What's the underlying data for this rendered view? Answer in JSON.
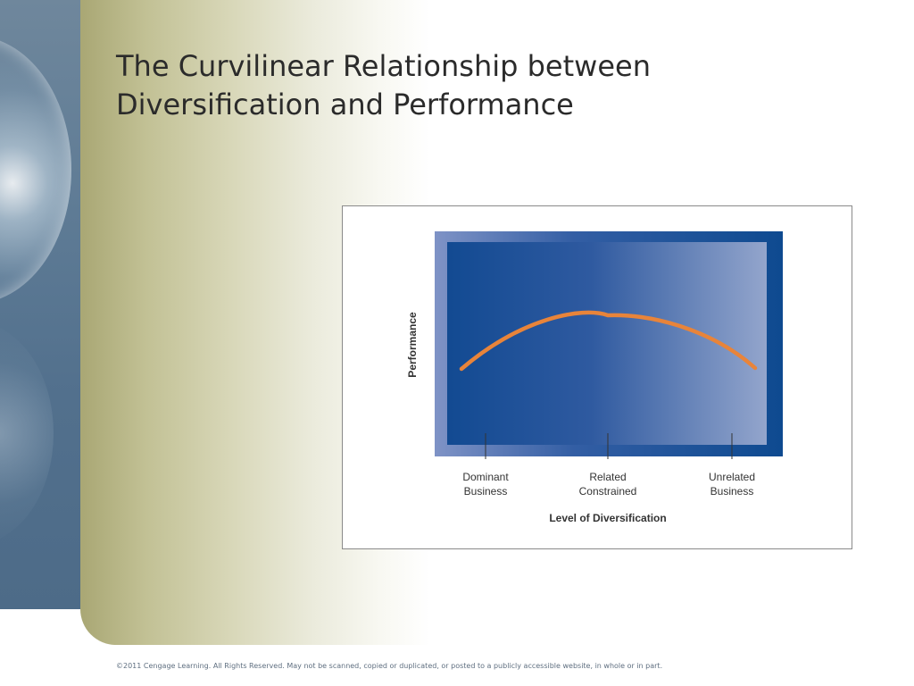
{
  "slide": {
    "title_lines": [
      "The Curvilinear Relationship between",
      "Diversification and Performance"
    ],
    "footer": "©2011 Cengage Learning. All Rights Reserved. May not be scanned, copied or duplicated, or posted to a publicly accessible website, in whole or in part."
  },
  "colors": {
    "curve": "#e8843a",
    "frame_outer": "#0e4a90",
    "plot_dark": "#124a92",
    "plot_light": "#93a5cc",
    "tick": "#333333",
    "label": "#333333"
  },
  "chart_data": {
    "type": "line",
    "title": "",
    "xlabel": "Level of Diversification",
    "ylabel": "Performance",
    "categories": [
      "Dominant Business",
      "Related Constrained",
      "Unrelated Business"
    ],
    "category_labels": [
      [
        "Dominant",
        "Business"
      ],
      [
        "Related",
        "Constrained"
      ],
      [
        "Unrelated",
        "Business"
      ]
    ],
    "shape": "inverted-U",
    "peak_category": "Related Constrained",
    "grid": false,
    "legend": "none"
  }
}
